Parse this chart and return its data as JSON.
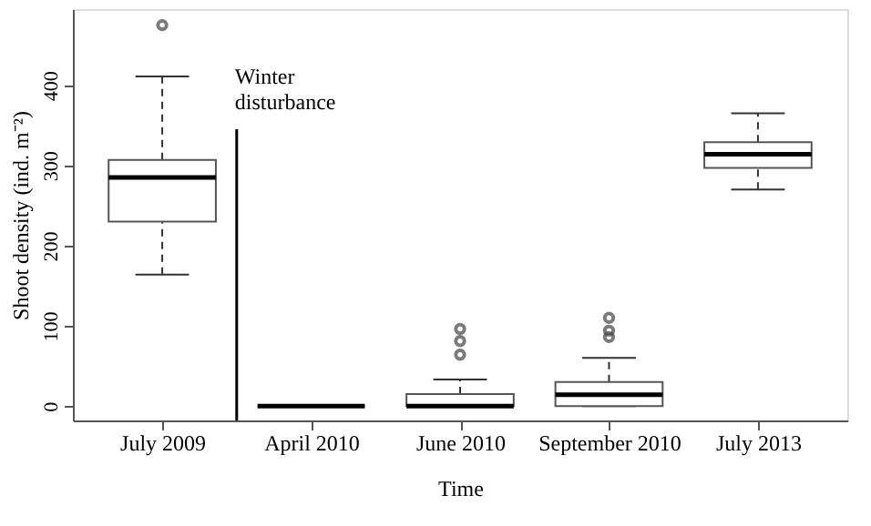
{
  "chart_data": {
    "type": "box",
    "xlabel": "Time",
    "ylabel": "Shoot density (ind. m⁻²)",
    "categories": [
      "July 2009",
      "April 2010",
      "June 2010",
      "September 2010",
      "July 2013"
    ],
    "boxes": [
      {
        "low": 164,
        "q1": 230,
        "median": 285,
        "q3": 307,
        "high": 411,
        "outliers": [
          475
        ]
      },
      {
        "low": 0,
        "q1": 0,
        "median": 0,
        "q3": 0,
        "high": 0
      },
      {
        "low": 0,
        "q1": 0,
        "median": 0,
        "q3": 15,
        "high": 33,
        "outliers": [
          64,
          81,
          96
        ]
      },
      {
        "low": 0,
        "q1": 0,
        "median": 14,
        "q3": 30,
        "high": 60,
        "outliers": [
          86,
          94,
          110
        ]
      },
      {
        "low": 270,
        "q1": 297,
        "median": 314,
        "q3": 329,
        "high": 365
      }
    ],
    "ylim": [
      -18,
      495
    ],
    "yticks": [
      0,
      100,
      200,
      300,
      400
    ],
    "grid": false,
    "annotations": [
      "Winter disturbance"
    ]
  }
}
